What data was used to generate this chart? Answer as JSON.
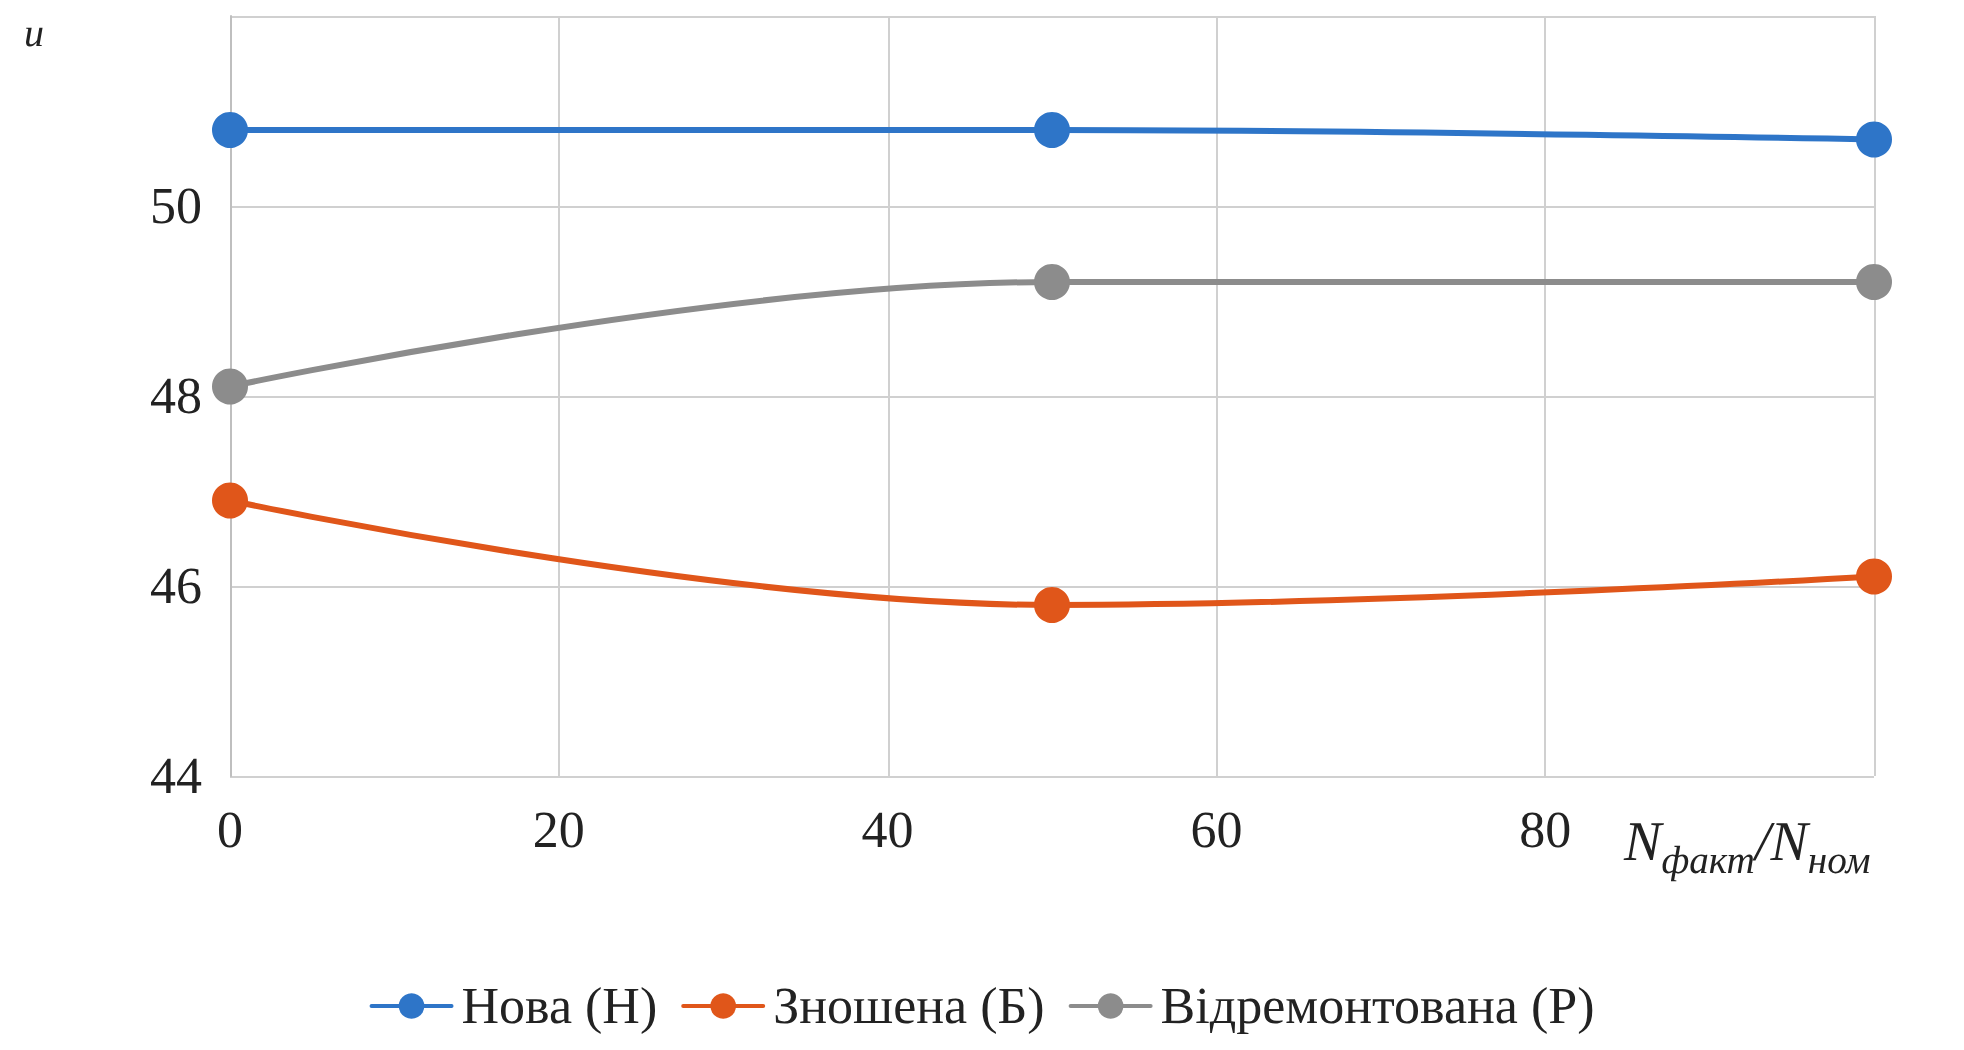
{
  "chart_data": {
    "type": "line",
    "xlabel": "N$_{факт}$/N$_{ном}$",
    "ylabel": "u",
    "x": [
      0,
      50,
      100
    ],
    "series": [
      {
        "name": "Нова (Н)",
        "color": "#2e75c8",
        "values": [
          50.8,
          50.8,
          50.7
        ]
      },
      {
        "name": "Зношена (Б)",
        "color": "#e0561a",
        "values": [
          46.9,
          45.8,
          46.1
        ]
      },
      {
        "name": "Відремонтована (Р)",
        "color": "#8c8c8c",
        "values": [
          48.1,
          49.2,
          49.2
        ]
      }
    ],
    "xlim": [
      0,
      100
    ],
    "xticks": [
      0,
      20,
      40,
      60,
      80,
      {
        "value": 100,
        "label": null
      }
    ],
    "ylim": [
      44,
      52
    ],
    "yticks": [
      44,
      46,
      48,
      50,
      {
        "value": 52,
        "label": null
      }
    ],
    "grid": true,
    "legend": "bottom",
    "marker": "circle",
    "line_style": "solid"
  }
}
